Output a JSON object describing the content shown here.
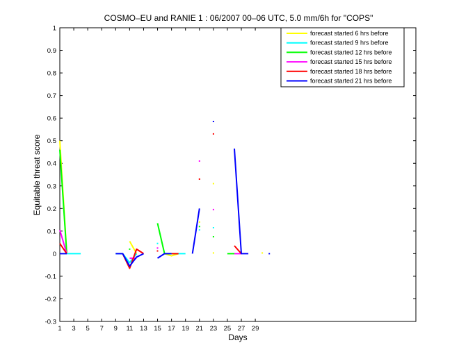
{
  "chart_data": {
    "type": "line",
    "title": "COSMO–EU and RANIE 1 : 06/2007 00–06 UTC, 5.0 mm/6h for \"COPS\"",
    "xlabel": "Days",
    "ylabel": "Equitable threat score",
    "xlim": [
      1,
      52
    ],
    "ylim": [
      -0.3,
      1
    ],
    "xticks": [
      1,
      3,
      5,
      7,
      9,
      11,
      13,
      15,
      17,
      19,
      21,
      23,
      25,
      27,
      29
    ],
    "yticks": [
      -0.3,
      -0.2,
      -0.1,
      0,
      0.1,
      0.2,
      0.3,
      0.4,
      0.5,
      0.6,
      0.7,
      0.8,
      0.9,
      1
    ],
    "ytick_labels": [
      "-0.3",
      "-0.2",
      "-0.1",
      "0",
      "0.1",
      "0.2",
      "0.3",
      "0.4",
      "0.5",
      "0.6",
      "0.7",
      "0.8",
      "0.9",
      "1"
    ],
    "legend_position": "top-right",
    "grid": false,
    "series": [
      {
        "name": "forecast started 6 hrs before",
        "color": "#ffff00",
        "segments": [
          [
            [
              1,
              0.5
            ],
            [
              2,
              0
            ]
          ],
          [
            [
              11,
              0.055
            ],
            [
              12,
              0.0
            ]
          ],
          [
            [
              16,
              0.0
            ],
            [
              17,
              -0.01
            ],
            [
              18,
              0
            ]
          ]
        ],
        "points": [
          [
            21,
            0.14
          ],
          [
            23,
            0.31
          ],
          [
            23,
            0.003
          ],
          [
            30,
            0.003
          ]
        ]
      },
      {
        "name": "forecast started 9 hrs before",
        "color": "#00ffff",
        "segments": [
          [
            [
              2,
              0
            ],
            [
              4,
              0
            ]
          ],
          [
            [
              9,
              0
            ],
            [
              10,
              0
            ],
            [
              11,
              -0.04
            ],
            [
              12,
              0
            ]
          ],
          [
            [
              16,
              0
            ],
            [
              19,
              0
            ]
          ]
        ],
        "points": [
          [
            15,
            0.045
          ],
          [
            21,
            0.105
          ],
          [
            23,
            0.115
          ]
        ]
      },
      {
        "name": "forecast started 12 hrs before",
        "color": "#00ff00",
        "segments": [
          [
            [
              1,
              0.46
            ],
            [
              2,
              0
            ]
          ],
          [
            [
              15,
              0.135
            ],
            [
              16,
              0
            ],
            [
              17,
              0
            ]
          ],
          [
            [
              25,
              0
            ],
            [
              26,
              0
            ]
          ]
        ],
        "points": [
          [
            11,
            0.02
          ],
          [
            21,
            0.12
          ],
          [
            23,
            0.075
          ]
        ]
      },
      {
        "name": "forecast started 15 hrs before",
        "color": "#ff00ff",
        "segments": [
          [
            [
              1,
              0.105
            ],
            [
              2,
              0
            ]
          ],
          [
            [
              11,
              -0.02
            ],
            [
              12,
              -0.02
            ]
          ],
          [
            [
              26,
              0
            ],
            [
              27,
              0
            ]
          ]
        ],
        "points": [
          [
            15,
            0.025
          ],
          [
            21,
            0.41
          ],
          [
            23,
            0.195
          ]
        ]
      },
      {
        "name": "forecast started 18 hrs before",
        "color": "#ff0000",
        "segments": [
          [
            [
              1,
              0.045
            ],
            [
              2,
              0
            ]
          ],
          [
            [
              10,
              0
            ],
            [
              11,
              -0.065
            ],
            [
              12,
              0.02
            ],
            [
              13,
              0
            ]
          ],
          [
            [
              17,
              0
            ],
            [
              18,
              0
            ]
          ],
          [
            [
              26,
              0.035
            ],
            [
              27,
              0
            ]
          ]
        ],
        "points": [
          [
            15,
            0.012
          ],
          [
            21,
            0.33
          ],
          [
            23,
            0.53
          ]
        ]
      },
      {
        "name": "forecast started 21 hrs before",
        "color": "#0000ff",
        "segments": [
          [
            [
              1,
              0
            ],
            [
              2,
              0
            ]
          ],
          [
            [
              9,
              0
            ],
            [
              10,
              0
            ],
            [
              11,
              -0.055
            ],
            [
              12,
              -0.015
            ],
            [
              13,
              0
            ]
          ],
          [
            [
              15,
              -0.02
            ],
            [
              16,
              0
            ],
            [
              17,
              0
            ]
          ],
          [
            [
              20,
              0
            ],
            [
              21,
              0.2
            ]
          ],
          [
            [
              26,
              0.465
            ],
            [
              27,
              0
            ],
            [
              28,
              0
            ]
          ]
        ],
        "points": [
          [
            23,
            0.585
          ],
          [
            31,
            0.0
          ]
        ]
      }
    ]
  }
}
